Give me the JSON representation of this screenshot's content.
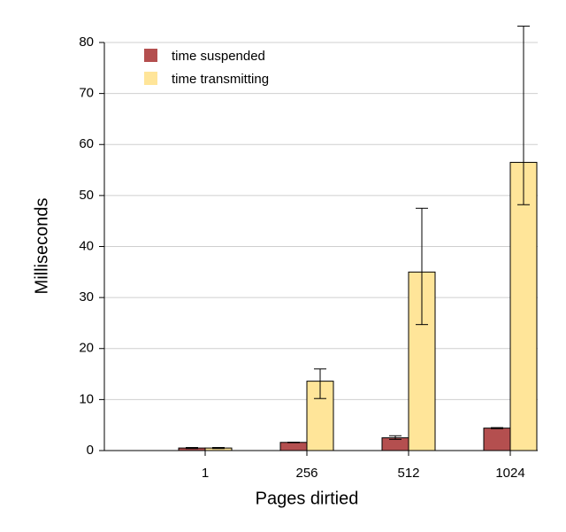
{
  "chart_data": {
    "type": "bar",
    "xlabel": "Pages dirtied",
    "ylabel": "Milliseconds",
    "categories": [
      "1",
      "256",
      "512",
      "1024"
    ],
    "series": [
      {
        "name": "time suspended",
        "color": "#b44f4f",
        "values": [
          0.5,
          1.6,
          2.5,
          4.4
        ],
        "lower": [
          0.4,
          1.55,
          2.2,
          4.3
        ],
        "upper": [
          0.6,
          1.65,
          2.9,
          4.5
        ]
      },
      {
        "name": "time transmitting",
        "color": "#ffe599",
        "values": [
          0.5,
          13.6,
          35,
          56.5
        ],
        "lower": [
          0.4,
          10.2,
          24.7,
          48.2
        ],
        "upper": [
          0.6,
          16,
          47.5,
          83.2
        ]
      }
    ],
    "ylim": [
      0,
      80
    ],
    "yticks": [
      0,
      10,
      20,
      30,
      40,
      50,
      60,
      70,
      80
    ],
    "grid": true,
    "legend": "upper left"
  }
}
